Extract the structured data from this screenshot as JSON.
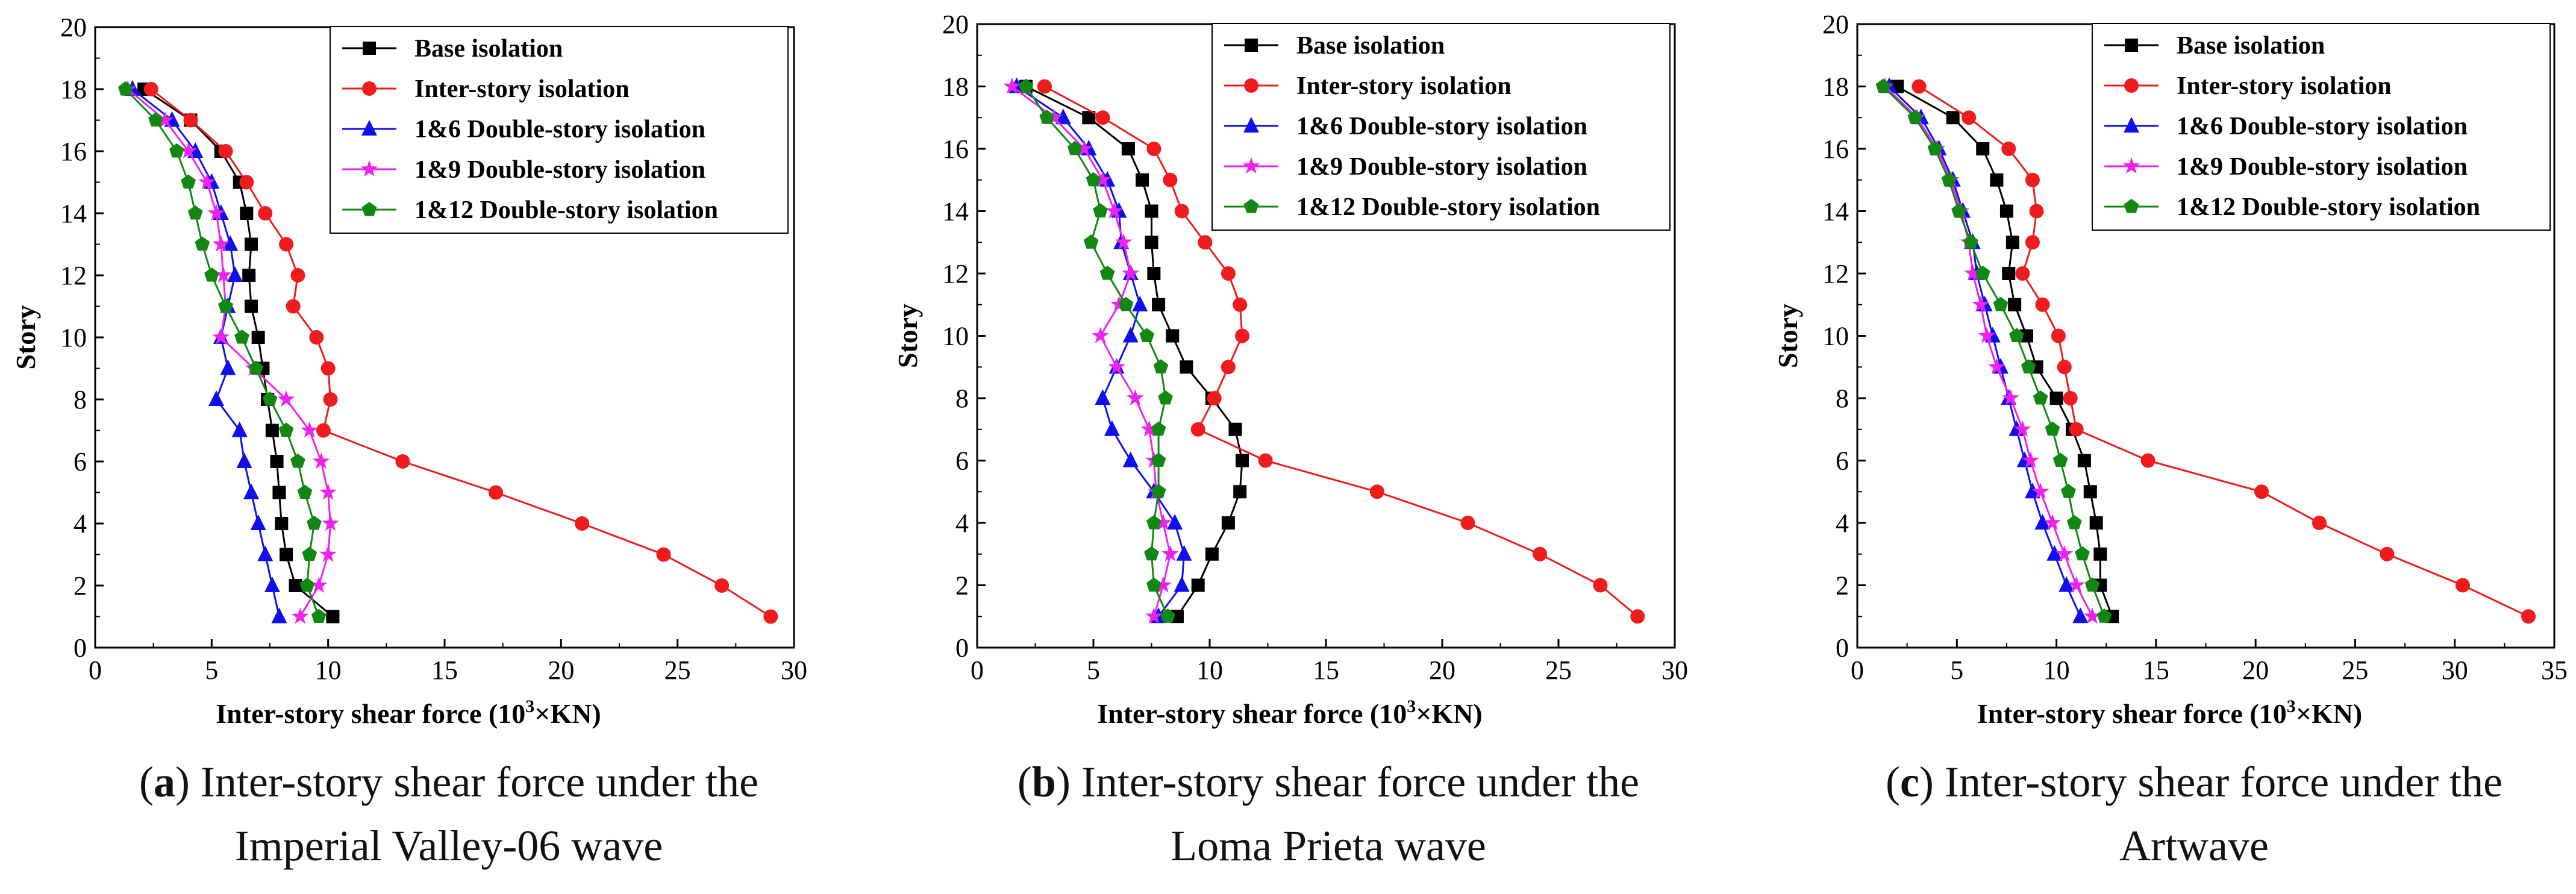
{
  "chart_data": [
    {
      "type": "line",
      "caption": {
        "letter": "a",
        "line1": ") Inter-story shear force under the",
        "line2": "Imperial Valley-06 wave"
      },
      "xlabel": "Inter-story shear force (10",
      "xlabel_sup": "3",
      "xlabel_suffix": "×KN)",
      "ylabel": "Story",
      "xlim": [
        0,
        30
      ],
      "ylim": [
        0,
        20
      ],
      "xticks": [
        0,
        5,
        10,
        15,
        20,
        25,
        30
      ],
      "yticks": [
        0,
        2,
        4,
        6,
        8,
        10,
        12,
        14,
        16,
        18,
        20
      ],
      "series": [
        {
          "name": "Base isolation",
          "color": "#000000",
          "marker": "square",
          "x": [
            10.2,
            8.6,
            8.2,
            8.0,
            7.9,
            7.8,
            7.6,
            7.4,
            7.2,
            7.0,
            6.7,
            6.6,
            6.7,
            6.5,
            6.2,
            5.4,
            4.1,
            2.1
          ],
          "y": [
            1,
            2,
            3,
            4,
            5,
            6,
            7,
            8,
            9,
            10,
            11,
            12,
            13,
            14,
            15,
            16,
            17,
            18
          ]
        },
        {
          "name": "Inter-story isolation",
          "color": "#ee1c1c",
          "marker": "circle",
          "x": [
            29.0,
            26.9,
            24.4,
            20.9,
            17.2,
            13.2,
            9.8,
            10.1,
            10.0,
            9.5,
            8.5,
            8.7,
            8.2,
            7.3,
            6.5,
            5.6,
            4.1,
            2.4
          ],
          "y": [
            1,
            2,
            3,
            4,
            5,
            6,
            7,
            8,
            9,
            10,
            11,
            12,
            13,
            14,
            15,
            16,
            17,
            18
          ]
        },
        {
          "name": "1&6 Double-story isolation",
          "color": "#1010ee",
          "marker": "triangle",
          "x": [
            7.9,
            7.6,
            7.3,
            7.0,
            6.7,
            6.4,
            6.2,
            5.2,
            5.7,
            5.4,
            5.7,
            6.0,
            5.8,
            5.4,
            5.0,
            4.3,
            3.3,
            1.6
          ],
          "y": [
            1,
            2,
            3,
            4,
            5,
            6,
            7,
            8,
            9,
            10,
            11,
            12,
            13,
            14,
            15,
            16,
            17,
            18
          ]
        },
        {
          "name": "1&9 Double-story isolation",
          "color": "#ee22ee",
          "marker": "star",
          "x": [
            8.8,
            9.6,
            10.0,
            10.1,
            10.0,
            9.7,
            9.2,
            8.2,
            6.8,
            5.4,
            5.6,
            5.5,
            5.4,
            5.2,
            4.8,
            4.0,
            3.0,
            1.4
          ],
          "y": [
            1,
            2,
            3,
            4,
            5,
            6,
            7,
            8,
            9,
            10,
            11,
            12,
            13,
            14,
            15,
            16,
            17,
            18
          ]
        },
        {
          "name": "1&12 Double-story isolation",
          "color": "#118811",
          "marker": "pentagon",
          "x": [
            9.6,
            9.1,
            9.2,
            9.4,
            9.0,
            8.7,
            8.2,
            7.5,
            6.9,
            6.3,
            5.6,
            5.0,
            4.6,
            4.3,
            4.0,
            3.5,
            2.6,
            1.3
          ],
          "y": [
            1,
            2,
            3,
            4,
            5,
            6,
            7,
            8,
            9,
            10,
            11,
            12,
            13,
            14,
            15,
            16,
            17,
            18
          ]
        }
      ]
    },
    {
      "type": "line",
      "caption": {
        "letter": "b",
        "line1": ") Inter-story shear force under the",
        "line2": "Loma Prieta wave"
      },
      "xlabel": "Inter-story shear force (10",
      "xlabel_sup": "3",
      "xlabel_suffix": "×KN)",
      "ylabel": "Story",
      "xlim": [
        0,
        30
      ],
      "ylim": [
        0,
        20
      ],
      "xticks": [
        0,
        5,
        10,
        15,
        20,
        25,
        30
      ],
      "yticks": [
        0,
        2,
        4,
        6,
        8,
        10,
        12,
        14,
        16,
        18,
        20
      ],
      "series": [
        {
          "name": "Base isolation",
          "color": "#000000",
          "marker": "square",
          "x": [
            8.6,
            9.5,
            10.1,
            10.8,
            11.3,
            11.4,
            11.1,
            10.1,
            9.0,
            8.4,
            7.8,
            7.6,
            7.5,
            7.5,
            7.1,
            6.5,
            4.8,
            2.1
          ],
          "y": [
            1,
            2,
            3,
            4,
            5,
            6,
            7,
            8,
            9,
            10,
            11,
            12,
            13,
            14,
            15,
            16,
            17,
            18
          ]
        },
        {
          "name": "Inter-story isolation",
          "color": "#ee1c1c",
          "marker": "circle",
          "x": [
            28.4,
            26.8,
            24.2,
            21.1,
            17.2,
            12.4,
            9.5,
            10.2,
            10.8,
            11.4,
            11.3,
            10.8,
            9.8,
            8.8,
            8.3,
            7.6,
            5.4,
            2.9
          ],
          "y": [
            1,
            2,
            3,
            4,
            5,
            6,
            7,
            8,
            9,
            10,
            11,
            12,
            13,
            14,
            15,
            16,
            17,
            18
          ]
        },
        {
          "name": "1&6 Double-story isolation",
          "color": "#1010ee",
          "marker": "triangle",
          "x": [
            7.8,
            8.8,
            8.9,
            8.5,
            7.6,
            6.6,
            5.8,
            5.4,
            6.0,
            6.6,
            7.0,
            6.6,
            6.2,
            6.1,
            5.6,
            4.8,
            3.7,
            1.7
          ],
          "y": [
            1,
            2,
            3,
            4,
            5,
            6,
            7,
            8,
            9,
            10,
            11,
            12,
            13,
            14,
            15,
            16,
            17,
            18
          ]
        },
        {
          "name": "1&9 Double-story isolation",
          "color": "#ee22ee",
          "marker": "star",
          "x": [
            7.6,
            8.0,
            8.3,
            8.0,
            7.7,
            7.6,
            7.4,
            6.8,
            6.0,
            5.3,
            6.1,
            6.6,
            6.3,
            5.9,
            5.4,
            4.6,
            3.3,
            1.5
          ],
          "y": [
            1,
            2,
            3,
            4,
            5,
            6,
            7,
            8,
            9,
            10,
            11,
            12,
            13,
            14,
            15,
            16,
            17,
            18
          ]
        },
        {
          "name": "1&12 Double-story isolation",
          "color": "#118811",
          "marker": "pentagon",
          "x": [
            8.2,
            7.6,
            7.5,
            7.6,
            7.8,
            7.8,
            7.8,
            8.1,
            7.9,
            7.3,
            6.4,
            5.6,
            4.9,
            5.3,
            5.0,
            4.2,
            3.0,
            2.1
          ],
          "y": [
            1,
            2,
            3,
            4,
            5,
            6,
            7,
            8,
            9,
            10,
            11,
            12,
            13,
            14,
            15,
            16,
            17,
            18
          ]
        }
      ]
    },
    {
      "type": "line",
      "caption": {
        "letter": "c",
        "line1": ") Inter-story shear force under the",
        "line2": "Artwave"
      },
      "xlabel": "Inter-story shear force (10",
      "xlabel_sup": "3",
      "xlabel_suffix": "×KN)",
      "ylabel": "Story",
      "xlim": [
        0,
        35
      ],
      "ylim": [
        0,
        20
      ],
      "xticks": [
        0,
        5,
        10,
        15,
        20,
        25,
        30,
        35
      ],
      "yticks": [
        0,
        2,
        4,
        6,
        8,
        10,
        12,
        14,
        16,
        18,
        20
      ],
      "series": [
        {
          "name": "Base isolation",
          "color": "#000000",
          "marker": "square",
          "x": [
            12.8,
            12.2,
            12.2,
            12.0,
            11.7,
            11.4,
            10.8,
            10.0,
            9.0,
            8.5,
            7.9,
            7.6,
            7.8,
            7.5,
            7.0,
            6.3,
            4.8,
            2.0
          ],
          "y": [
            1,
            2,
            3,
            4,
            5,
            6,
            7,
            8,
            9,
            10,
            11,
            12,
            13,
            14,
            15,
            16,
            17,
            18
          ]
        },
        {
          "name": "Inter-story isolation",
          "color": "#ee1c1c",
          "marker": "circle",
          "x": [
            33.7,
            30.4,
            26.6,
            23.2,
            20.3,
            14.6,
            11.0,
            10.7,
            10.4,
            10.1,
            9.3,
            8.3,
            8.8,
            9.0,
            8.8,
            7.6,
            5.6,
            3.1
          ],
          "y": [
            1,
            2,
            3,
            4,
            5,
            6,
            7,
            8,
            9,
            10,
            11,
            12,
            13,
            14,
            15,
            16,
            17,
            18
          ]
        },
        {
          "name": "1&6 Double-story isolation",
          "color": "#1010ee",
          "marker": "triangle",
          "x": [
            11.2,
            10.5,
            9.9,
            9.3,
            8.8,
            8.4,
            8.0,
            7.6,
            7.2,
            6.8,
            6.4,
            6.0,
            5.8,
            5.3,
            4.8,
            4.1,
            3.2,
            1.6
          ],
          "y": [
            1,
            2,
            3,
            4,
            5,
            6,
            7,
            8,
            9,
            10,
            11,
            12,
            13,
            14,
            15,
            16,
            17,
            18
          ]
        },
        {
          "name": "1&9 Double-story isolation",
          "color": "#ee22ee",
          "marker": "star",
          "x": [
            11.8,
            11.0,
            10.4,
            9.8,
            9.2,
            8.7,
            8.3,
            7.7,
            7.0,
            6.5,
            6.2,
            5.8,
            5.6,
            5.2,
            4.7,
            4.0,
            3.0,
            1.4
          ],
          "y": [
            1,
            2,
            3,
            4,
            5,
            6,
            7,
            8,
            9,
            10,
            11,
            12,
            13,
            14,
            15,
            16,
            17,
            18
          ]
        },
        {
          "name": "1&12 Double-story isolation",
          "color": "#118811",
          "marker": "pentagon",
          "x": [
            12.4,
            11.8,
            11.3,
            10.9,
            10.6,
            10.2,
            9.8,
            9.2,
            8.6,
            8.0,
            7.2,
            6.3,
            5.7,
            5.1,
            4.6,
            3.9,
            2.9,
            1.3
          ],
          "y": [
            1,
            2,
            3,
            4,
            5,
            6,
            7,
            8,
            9,
            10,
            11,
            12,
            13,
            14,
            15,
            16,
            17,
            18
          ]
        }
      ]
    }
  ]
}
